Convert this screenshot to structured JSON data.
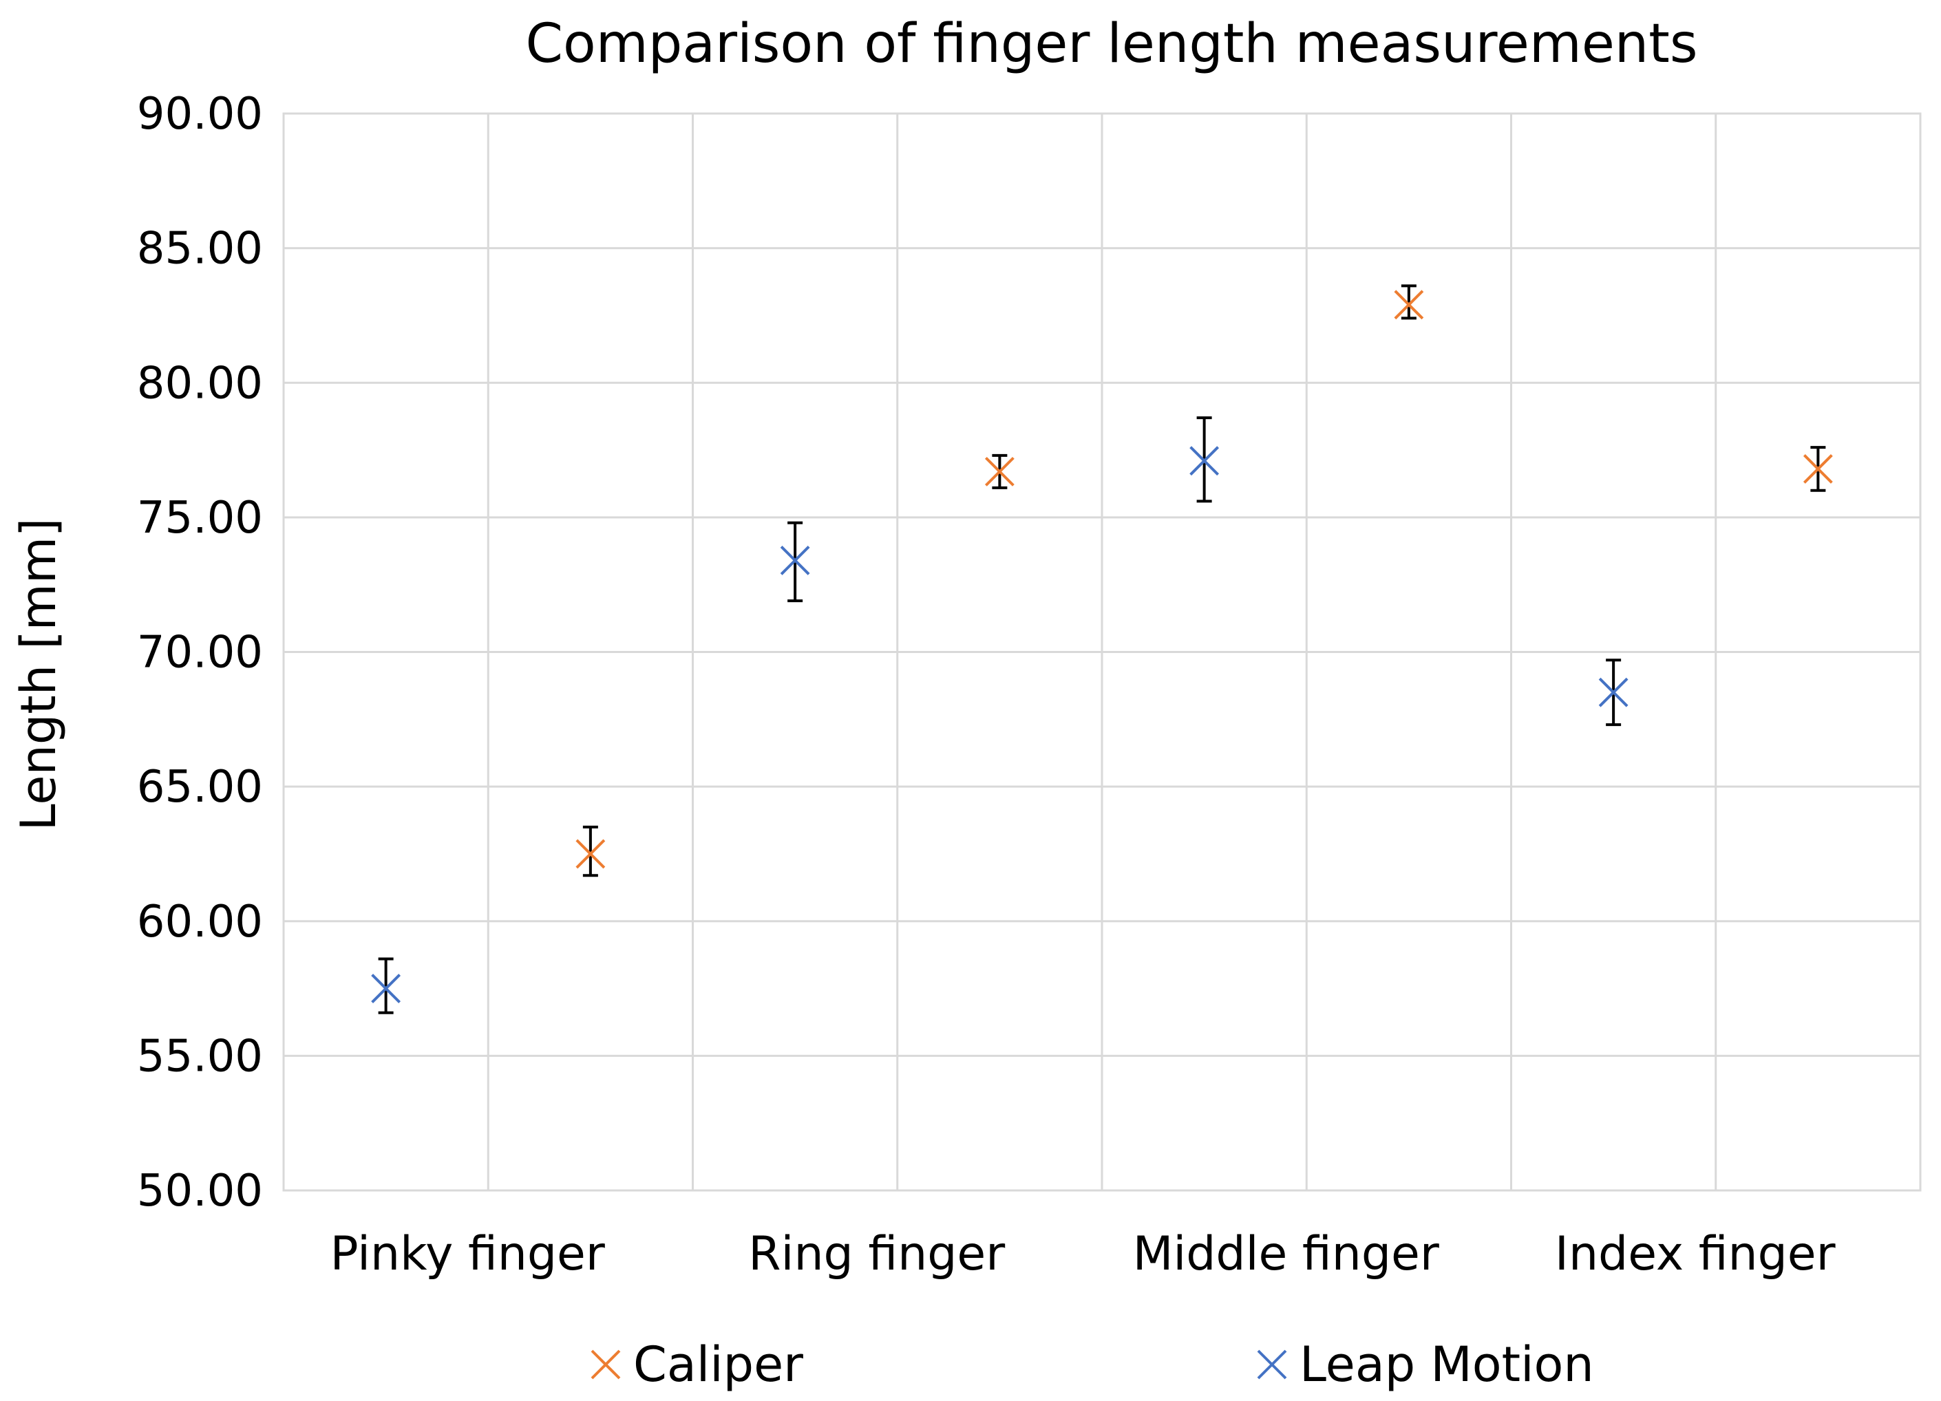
{
  "chart_data": {
    "type": "scatter",
    "title": "Comparison of finger length measurements",
    "xlabel": "",
    "ylabel": "Length [mm]",
    "ylim": [
      50,
      90
    ],
    "y_ticks": [
      "50.00",
      "55.00",
      "60.00",
      "65.00",
      "70.00",
      "75.00",
      "80.00",
      "85.00",
      "90.00"
    ],
    "categories": [
      "Pinky finger",
      "Ring finger",
      "Middle finger",
      "Index finger"
    ],
    "grid": true,
    "legend_position": "bottom",
    "series": [
      {
        "name": "Caliper",
        "color": "#ed7d31",
        "marker": "x",
        "values": [
          62.5,
          76.7,
          82.9,
          76.8
        ],
        "error_low": [
          61.7,
          76.1,
          82.4,
          76.0
        ],
        "error_high": [
          63.5,
          77.3,
          83.6,
          77.6
        ]
      },
      {
        "name": "Leap Motion",
        "color": "#4472c4",
        "marker": "x",
        "values": [
          57.5,
          73.4,
          77.1,
          68.5
        ],
        "error_low": [
          56.6,
          71.9,
          75.6,
          67.3
        ],
        "error_high": [
          58.6,
          74.8,
          78.7,
          69.7
        ]
      }
    ]
  }
}
